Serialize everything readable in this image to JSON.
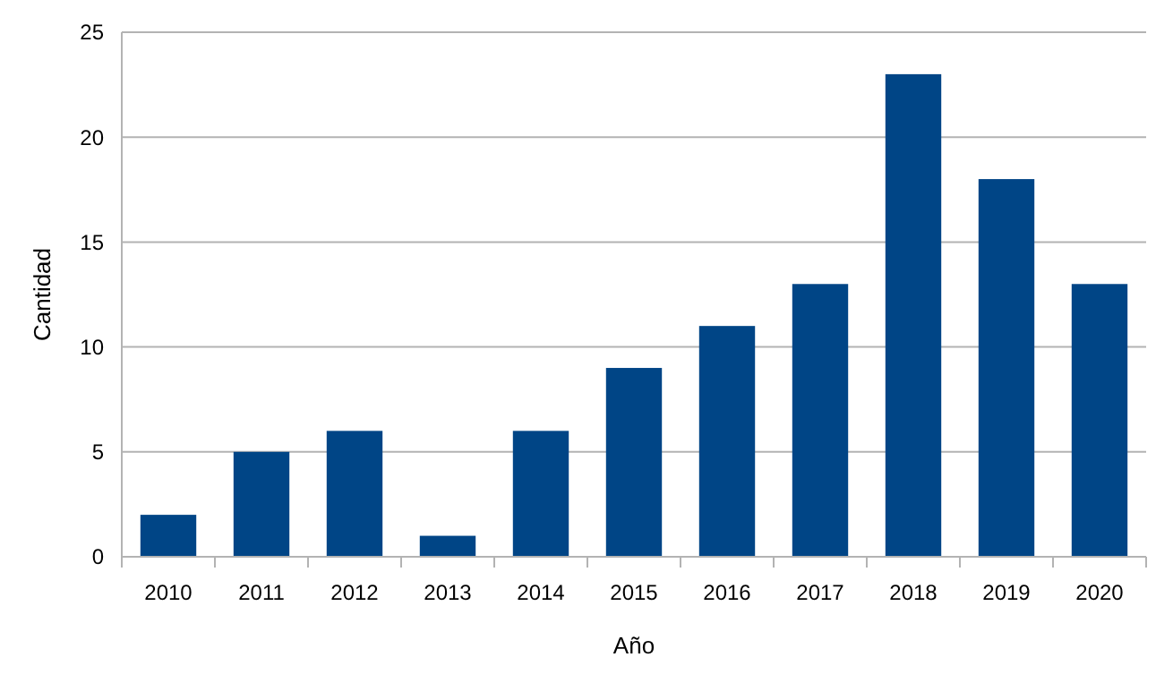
{
  "chart_data": {
    "type": "bar",
    "xlabel": "Año",
    "ylabel": "Cantidad",
    "categories": [
      "2010",
      "2011",
      "2012",
      "2013",
      "2014",
      "2015",
      "2016",
      "2017",
      "2018",
      "2019",
      "2020"
    ],
    "values": [
      2,
      5,
      6,
      1,
      6,
      9,
      11,
      13,
      23,
      18,
      13
    ],
    "color": "#004586",
    "ylim": [
      0,
      25
    ],
    "yticks": [
      0,
      5,
      10,
      15,
      20,
      25
    ],
    "grid": "y"
  }
}
